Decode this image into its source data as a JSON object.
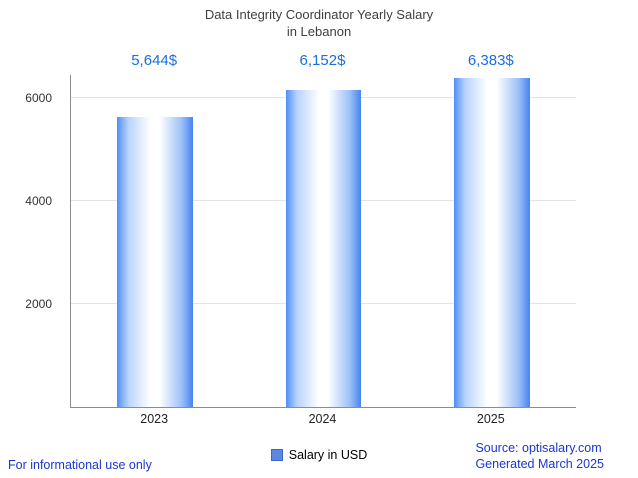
{
  "title": {
    "line1": "Data Integrity Coordinator Yearly Salary",
    "line2": "in Lebanon"
  },
  "chart_data": {
    "type": "bar",
    "title": "Data Integrity Coordinator Yearly Salary in Lebanon",
    "categories": [
      "2023",
      "2024",
      "2025"
    ],
    "values": [
      5644,
      6152,
      6383
    ],
    "value_labels": [
      "5,644$",
      "6,152$",
      "6,383$"
    ],
    "series_name": "Salary in USD",
    "xlabel": "",
    "ylabel": "",
    "ylim": [
      0,
      6450
    ],
    "yticks": [
      2000,
      4000,
      6000
    ],
    "grid": true,
    "legend_position": "bottom-center"
  },
  "legend": {
    "label": "Salary in USD"
  },
  "footer": {
    "left": "For informational use only",
    "source": "Source: optisalary.com",
    "generated": "Generated March 2025"
  },
  "colors": {
    "title": "#3f3f3f",
    "value_label": "#1a6fe0",
    "footer_link": "#1b36d2",
    "bar_edge": "#4f8ff3",
    "bar_center": "#ffffff",
    "axis": "#8c8c8c",
    "grid": "#e4e4e4",
    "legend_swatch": "#5d87e2"
  }
}
